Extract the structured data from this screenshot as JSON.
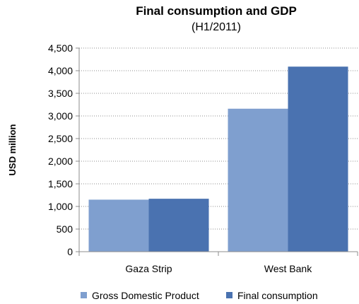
{
  "chart_data": {
    "type": "bar",
    "title": "Final consumption and GDP",
    "subtitle": "(H1/2011)",
    "ylabel": "USD million",
    "xlabel": "",
    "categories": [
      "Gaza Strip",
      "West Bank"
    ],
    "series": [
      {
        "name": "Gross Domestic Product",
        "values": [
          1150,
          3160
        ],
        "color": "#7f9fcf"
      },
      {
        "name": "Final consumption",
        "values": [
          1170,
          4090
        ],
        "color": "#4a72b0"
      }
    ],
    "ylim": [
      0,
      4500
    ],
    "yticks": [
      0,
      500,
      1000,
      1500,
      2000,
      2500,
      3000,
      3500,
      4000,
      4500
    ],
    "ytick_labels": [
      "0",
      "500",
      "1,000",
      "1,500",
      "2,000",
      "2,500",
      "3,000",
      "3,500",
      "4,000",
      "4,500"
    ],
    "grid": true,
    "legend_position": "bottom"
  }
}
